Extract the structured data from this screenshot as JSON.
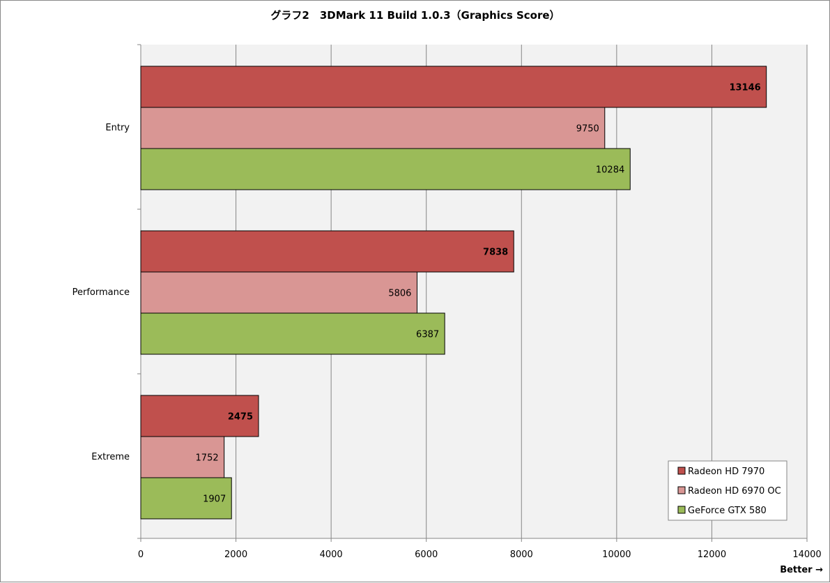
{
  "chart_data": {
    "type": "bar",
    "orientation": "horizontal",
    "title": "グラフ2　3DMark 11 Build 1.0.3（Graphics Score）",
    "categories": [
      "Entry",
      "Performance",
      "Extreme"
    ],
    "series": [
      {
        "name": "Radeon HD 7970",
        "color": "#c0504d",
        "values": [
          13146,
          7838,
          2475
        ],
        "bold_labels": true
      },
      {
        "name": "Radeon HD 6970 OC",
        "color": "#d99694",
        "values": [
          9750,
          5806,
          1752
        ],
        "bold_labels": false
      },
      {
        "name": "GeForce GTX 580",
        "color": "#9bbb59",
        "values": [
          10284,
          6387,
          1907
        ],
        "bold_labels": false
      }
    ],
    "xlim": [
      0,
      14000
    ],
    "xticks": [
      0,
      2000,
      4000,
      6000,
      8000,
      10000,
      12000,
      14000
    ],
    "xlabel": "Better →",
    "ylabel": "",
    "grid": true,
    "legend": "bottom-right"
  }
}
